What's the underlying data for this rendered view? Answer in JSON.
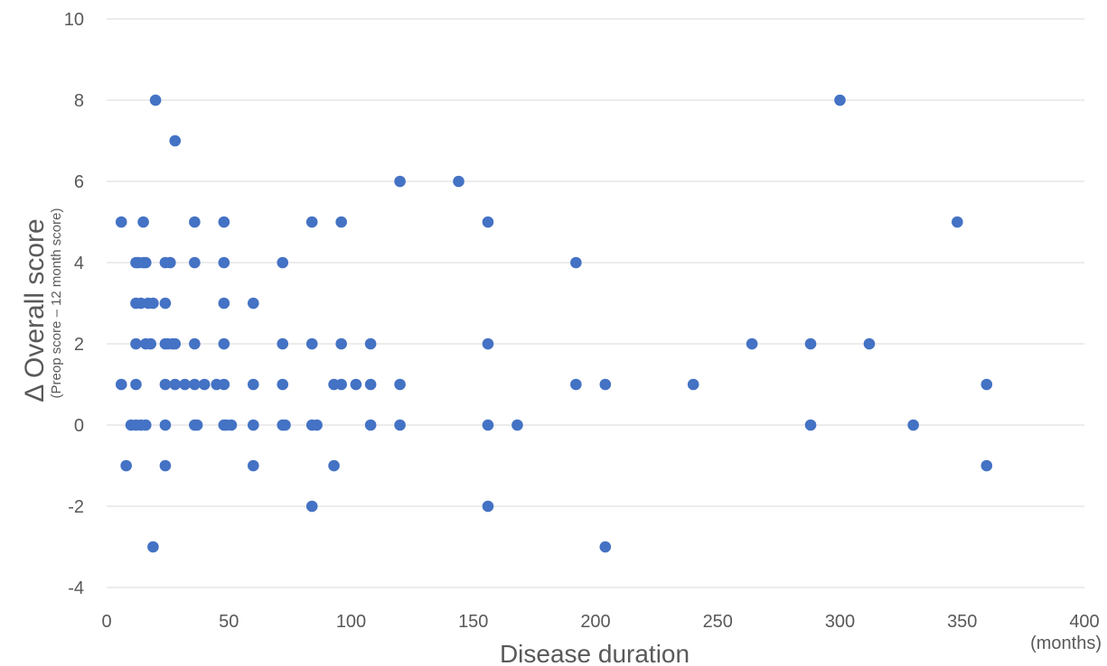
{
  "chart_data": {
    "type": "scatter",
    "title": "",
    "xlabel": "Disease duration",
    "xlabel_unit": "(months)",
    "ylabel": "Δ Overall score",
    "ylabel_sub": "(Preop score – 12 month score)",
    "xlim": [
      0,
      400
    ],
    "ylim": [
      -4,
      10
    ],
    "x_ticks": [
      "0",
      "50",
      "100",
      "150",
      "200",
      "250",
      "300",
      "350",
      "400"
    ],
    "y_ticks": [
      "-4",
      "-2",
      "0",
      "2",
      "4",
      "6",
      "8",
      "10"
    ],
    "grid": "horizontal",
    "marker_color": "#4472c4",
    "series": [
      {
        "points": [
          [
            6,
            5
          ],
          [
            6,
            1
          ],
          [
            8,
            -1
          ],
          [
            10,
            0
          ],
          [
            12,
            0
          ],
          [
            12,
            1
          ],
          [
            12,
            2
          ],
          [
            12,
            3
          ],
          [
            12,
            4
          ],
          [
            13,
            4
          ],
          [
            14,
            0
          ],
          [
            14,
            3
          ],
          [
            15,
            4
          ],
          [
            16,
            4
          ],
          [
            16,
            2
          ],
          [
            16,
            0
          ],
          [
            15,
            5
          ],
          [
            17,
            3
          ],
          [
            18,
            2
          ],
          [
            19,
            3
          ],
          [
            20,
            8
          ],
          [
            19,
            -3
          ],
          [
            24,
            4
          ],
          [
            24,
            3
          ],
          [
            24,
            2
          ],
          [
            24,
            1
          ],
          [
            24,
            0
          ],
          [
            24,
            -1
          ],
          [
            25,
            2
          ],
          [
            26,
            4
          ],
          [
            27,
            2
          ],
          [
            28,
            1
          ],
          [
            28,
            2
          ],
          [
            28,
            7
          ],
          [
            32,
            1
          ],
          [
            36,
            5
          ],
          [
            36,
            4
          ],
          [
            36,
            2
          ],
          [
            36,
            1
          ],
          [
            36,
            0
          ],
          [
            37,
            0
          ],
          [
            40,
            1
          ],
          [
            45,
            1
          ],
          [
            48,
            5
          ],
          [
            48,
            4
          ],
          [
            48,
            3
          ],
          [
            48,
            2
          ],
          [
            48,
            1
          ],
          [
            48,
            0
          ],
          [
            49,
            0
          ],
          [
            51,
            0
          ],
          [
            60,
            3
          ],
          [
            60,
            1
          ],
          [
            60,
            0
          ],
          [
            60,
            -1
          ],
          [
            72,
            4
          ],
          [
            72,
            2
          ],
          [
            72,
            1
          ],
          [
            72,
            0
          ],
          [
            73,
            0
          ],
          [
            84,
            5
          ],
          [
            84,
            2
          ],
          [
            84,
            0
          ],
          [
            84,
            -2
          ],
          [
            86,
            0
          ],
          [
            93,
            1
          ],
          [
            93,
            -1
          ],
          [
            96,
            5
          ],
          [
            96,
            2
          ],
          [
            96,
            1
          ],
          [
            102,
            1
          ],
          [
            108,
            2
          ],
          [
            108,
            1
          ],
          [
            108,
            0
          ],
          [
            120,
            6
          ],
          [
            120,
            1
          ],
          [
            120,
            0
          ],
          [
            144,
            6
          ],
          [
            156,
            5
          ],
          [
            156,
            2
          ],
          [
            156,
            0
          ],
          [
            156,
            -2
          ],
          [
            168,
            0
          ],
          [
            192,
            4
          ],
          [
            192,
            1
          ],
          [
            204,
            1
          ],
          [
            204,
            -3
          ],
          [
            240,
            1
          ],
          [
            264,
            2
          ],
          [
            288,
            2
          ],
          [
            288,
            0
          ],
          [
            300,
            8
          ],
          [
            312,
            2
          ],
          [
            330,
            0
          ],
          [
            348,
            5
          ],
          [
            360,
            1
          ],
          [
            360,
            -1
          ]
        ]
      }
    ]
  }
}
